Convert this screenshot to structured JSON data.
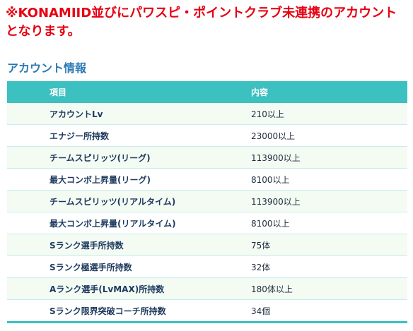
{
  "notice": {
    "line1": "※KONAMIID並びにパワスピ・ポイントクラブ未連携のアカウント",
    "line2": "となります。"
  },
  "section": {
    "title": "アカウント情報"
  },
  "table": {
    "headers": {
      "item": "項目",
      "value": "内容"
    },
    "rows": [
      {
        "item": "アカウントLv",
        "value": "210以上"
      },
      {
        "item": "エナジー所持数",
        "value": "23000以上"
      },
      {
        "item": "チームスピリッツ(リーグ)",
        "value": "113900以上"
      },
      {
        "item": "最大コンボ上昇量(リーグ)",
        "value": "8100以上"
      },
      {
        "item": "チームスピリッツ(リアルタイム)",
        "value": "113900以上"
      },
      {
        "item": "最大コンボ上昇量(リアルタイム)",
        "value": "8100以上"
      },
      {
        "item": "Sランク選手所持数",
        "value": "75体"
      },
      {
        "item": "Sランク極選手所持数",
        "value": "32体"
      },
      {
        "item": "Aランク選手(LvMAX)所持数",
        "value": "180体以上"
      },
      {
        "item": "Sランク限界突破コーチ所持数",
        "value": "34個"
      }
    ]
  },
  "colors": {
    "notice": "#e60012",
    "section_title": "#2a7ab5",
    "header_bg": "#3cc0c0",
    "row_stripe": "#f3fbf3"
  }
}
